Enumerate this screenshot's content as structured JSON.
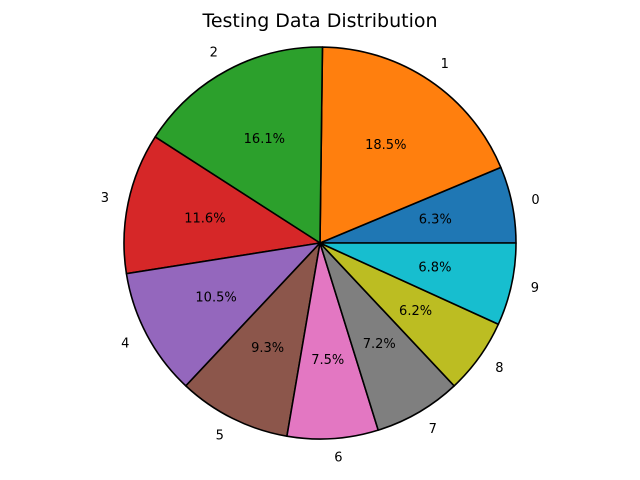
{
  "chart_data": {
    "type": "pie",
    "title": "Testing Data Distribution",
    "categories": [
      "0",
      "1",
      "2",
      "3",
      "4",
      "5",
      "6",
      "7",
      "8",
      "9"
    ],
    "values": [
      6.3,
      18.5,
      16.1,
      11.6,
      10.5,
      9.3,
      7.5,
      7.2,
      6.2,
      6.8
    ],
    "percent_labels": [
      "6.3%",
      "18.5%",
      "16.1%",
      "11.6%",
      "10.5%",
      "9.3%",
      "7.5%",
      "7.2%",
      "6.2%",
      "6.8%"
    ],
    "colors": [
      "#1f77b4",
      "#ff7f0e",
      "#2ca02c",
      "#d62728",
      "#9467bd",
      "#8c564b",
      "#e377c2",
      "#7f7f7f",
      "#bcbd22",
      "#17becf"
    ],
    "start_angle_deg": 0,
    "direction": "counterclockwise",
    "edge_color": "#000000",
    "legend": "none"
  }
}
